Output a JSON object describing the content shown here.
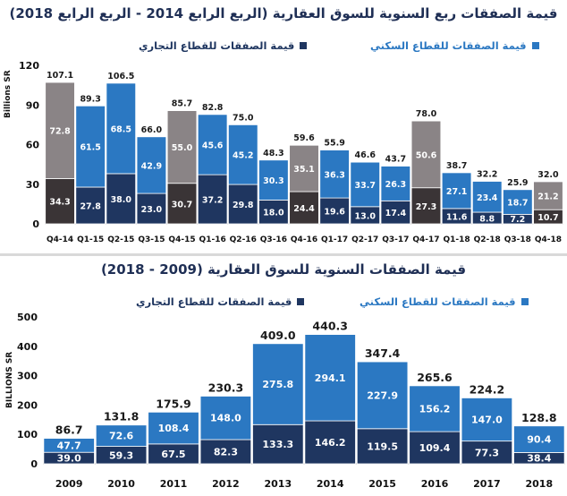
{
  "colors": {
    "residential": "#2b78c2",
    "commercial": "#1f3660",
    "q4_residential": "#8a8486",
    "q4_commercial": "#3a3436",
    "title": "#1f2f55",
    "axis_text": "#111111"
  },
  "top_chart": {
    "title": "قيمة الصفقات ربع السنوية للسوق العقارية (الربع الرابع 2014 - الربع الرابع 2018)",
    "legend_residential": "قيمة الصفقات للقطاع السكني",
    "legend_commercial": "قيمة الصفقات للقطاع التجاري",
    "ylabel": "Billions SR"
  },
  "bottom_chart": {
    "title": "قيمة الصفقات السنوية للسوق العقارية (2009 - 2018)",
    "legend_residential": "قيمة الصفقات للقطاع السكني",
    "legend_commercial": "قيمة الصفقات للقطاع التجاري",
    "ylabel": "BILLIONS SR"
  },
  "chart_data": [
    {
      "type": "bar",
      "stacked": true,
      "title": "قيمة الصفقات ربع السنوية للسوق العقارية (الربع الرابع 2014 - الربع الرابع 2018)",
      "ylabel": "Billions SR",
      "ylim": [
        0,
        120
      ],
      "yticks": [
        0,
        30,
        60,
        90,
        120
      ],
      "categories": [
        "Q4-14",
        "Q1-15",
        "Q2-15",
        "Q3-15",
        "Q4-15",
        "Q1-16",
        "Q2-16",
        "Q3-16",
        "Q4-16",
        "Q1-17",
        "Q2-17",
        "Q3-17",
        "Q4-17",
        "Q1-18",
        "Q2-18",
        "Q3-18",
        "Q4-18"
      ],
      "series": [
        {
          "name": "قيمة الصفقات للقطاع التجاري",
          "values": [
            34.3,
            27.8,
            38.0,
            23.0,
            30.7,
            37.2,
            29.8,
            18.0,
            24.4,
            19.6,
            13.0,
            17.4,
            27.3,
            11.6,
            8.8,
            7.2,
            10.7
          ]
        },
        {
          "name": "قيمة الصفقات للقطاع السكني",
          "values": [
            72.8,
            61.5,
            68.5,
            42.9,
            55.0,
            45.6,
            45.2,
            30.3,
            35.1,
            36.3,
            33.7,
            26.3,
            50.6,
            27.1,
            23.4,
            18.7,
            21.2
          ]
        }
      ],
      "totals": [
        107.1,
        89.3,
        106.5,
        66.0,
        85.7,
        82.8,
        75.0,
        48.3,
        59.6,
        55.9,
        46.6,
        43.7,
        78.0,
        38.7,
        32.2,
        25.9,
        32.0
      ],
      "highlight_q4": true,
      "grid": false
    },
    {
      "type": "bar",
      "stacked": true,
      "title": "قيمة الصفقات السنوية للسوق العقارية (2009 - 2018)",
      "ylabel": "BILLIONS SR",
      "ylim": [
        0,
        500
      ],
      "yticks": [
        0,
        100,
        200,
        300,
        400,
        500
      ],
      "categories": [
        "2009",
        "2010",
        "2011",
        "2012",
        "2013",
        "2014",
        "2015",
        "2016",
        "2017",
        "2018"
      ],
      "series": [
        {
          "name": "قيمة الصفقات للقطاع التجاري",
          "values": [
            39.0,
            59.3,
            67.5,
            82.3,
            133.3,
            146.2,
            119.5,
            109.4,
            77.3,
            38.4
          ]
        },
        {
          "name": "قيمة الصفقات للقطاع السكني",
          "values": [
            47.7,
            72.6,
            108.4,
            148.0,
            275.8,
            294.1,
            227.9,
            156.2,
            147.0,
            90.4
          ]
        }
      ],
      "totals": [
        86.7,
        131.8,
        175.9,
        230.3,
        409.0,
        440.3,
        347.4,
        265.6,
        224.2,
        128.8
      ],
      "grid": false
    }
  ]
}
